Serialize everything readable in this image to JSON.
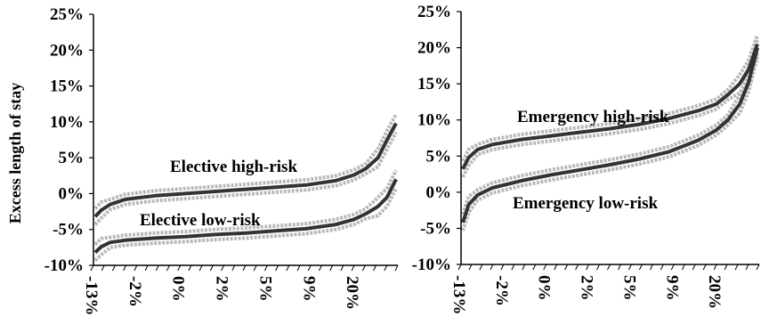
{
  "chart_data": [
    {
      "type": "line",
      "title": "",
      "ylabel": "Excess length of stay",
      "xlabel": "",
      "ylim": [
        -10,
        25
      ],
      "yticks": [
        "-10%",
        "-5%",
        "0%",
        "5%",
        "10%",
        "15%",
        "20%",
        "25%"
      ],
      "xticks": [
        "-13%",
        "-2%",
        "0%",
        "2%",
        "5%",
        "9%",
        "20%"
      ],
      "x_tick_count": 29,
      "grid": false,
      "legend": "none",
      "colors": {
        "series": "#333333",
        "ci_band": "#b8b8b8"
      },
      "series": [
        {
          "label": "Elective high-risk",
          "points": [
            [
              0,
              -3.2
            ],
            [
              2,
              -2.3
            ],
            [
              5,
              -1.5
            ],
            [
              10,
              -0.8
            ],
            [
              20,
              -0.3
            ],
            [
              30,
              0
            ],
            [
              40,
              0.3
            ],
            [
              50,
              0.6
            ],
            [
              60,
              0.9
            ],
            [
              70,
              1.2
            ],
            [
              80,
              1.8
            ],
            [
              86,
              2.6
            ],
            [
              90,
              3.5
            ],
            [
              94,
              5
            ],
            [
              97,
              7.5
            ],
            [
              100,
              9.8
            ]
          ]
        },
        {
          "label": "Elective low-risk",
          "points": [
            [
              0,
              -8.2
            ],
            [
              2,
              -7.4
            ],
            [
              5,
              -6.8
            ],
            [
              10,
              -6.5
            ],
            [
              20,
              -6.2
            ],
            [
              30,
              -6.0
            ],
            [
              40,
              -5.7
            ],
            [
              50,
              -5.5
            ],
            [
              60,
              -5.2
            ],
            [
              70,
              -4.9
            ],
            [
              80,
              -4.3
            ],
            [
              86,
              -3.6
            ],
            [
              90,
              -2.8
            ],
            [
              94,
              -1.8
            ],
            [
              97,
              -0.5
            ],
            [
              100,
              2.0
            ]
          ]
        }
      ]
    },
    {
      "type": "line",
      "title": "",
      "ylabel": "",
      "xlabel": "",
      "ylim": [
        -10,
        25
      ],
      "yticks": [
        "-10%",
        "-5%",
        "0%",
        "5%",
        "10%",
        "15%",
        "20%",
        "25%"
      ],
      "xticks": [
        "-13%",
        "-2%",
        "0%",
        "2%",
        "5%",
        "9%",
        "20%"
      ],
      "x_tick_count": 29,
      "grid": false,
      "legend": "none",
      "colors": {
        "series": "#333333",
        "ci_band": "#b8b8b8"
      },
      "series": [
        {
          "label": "Emergency high-risk",
          "points": [
            [
              0,
              3.2
            ],
            [
              2,
              4.8
            ],
            [
              5,
              5.9
            ],
            [
              10,
              6.6
            ],
            [
              20,
              7.3
            ],
            [
              30,
              7.8
            ],
            [
              40,
              8.3
            ],
            [
              50,
              8.8
            ],
            [
              60,
              9.4
            ],
            [
              70,
              10.2
            ],
            [
              80,
              11.3
            ],
            [
              86,
              12.2
            ],
            [
              90,
              13.5
            ],
            [
              94,
              15
            ],
            [
              97,
              17
            ],
            [
              100,
              20.5
            ]
          ]
        },
        {
          "label": "Emergency low-risk",
          "points": [
            [
              0,
              -4.2
            ],
            [
              2,
              -1.7
            ],
            [
              5,
              -0.4
            ],
            [
              10,
              0.6
            ],
            [
              20,
              1.6
            ],
            [
              30,
              2.4
            ],
            [
              40,
              3.1
            ],
            [
              50,
              3.8
            ],
            [
              60,
              4.6
            ],
            [
              70,
              5.6
            ],
            [
              80,
              7.2
            ],
            [
              86,
              8.6
            ],
            [
              90,
              10
            ],
            [
              94,
              12.2
            ],
            [
              97,
              15.2
            ],
            [
              100,
              20
            ]
          ]
        }
      ]
    }
  ]
}
